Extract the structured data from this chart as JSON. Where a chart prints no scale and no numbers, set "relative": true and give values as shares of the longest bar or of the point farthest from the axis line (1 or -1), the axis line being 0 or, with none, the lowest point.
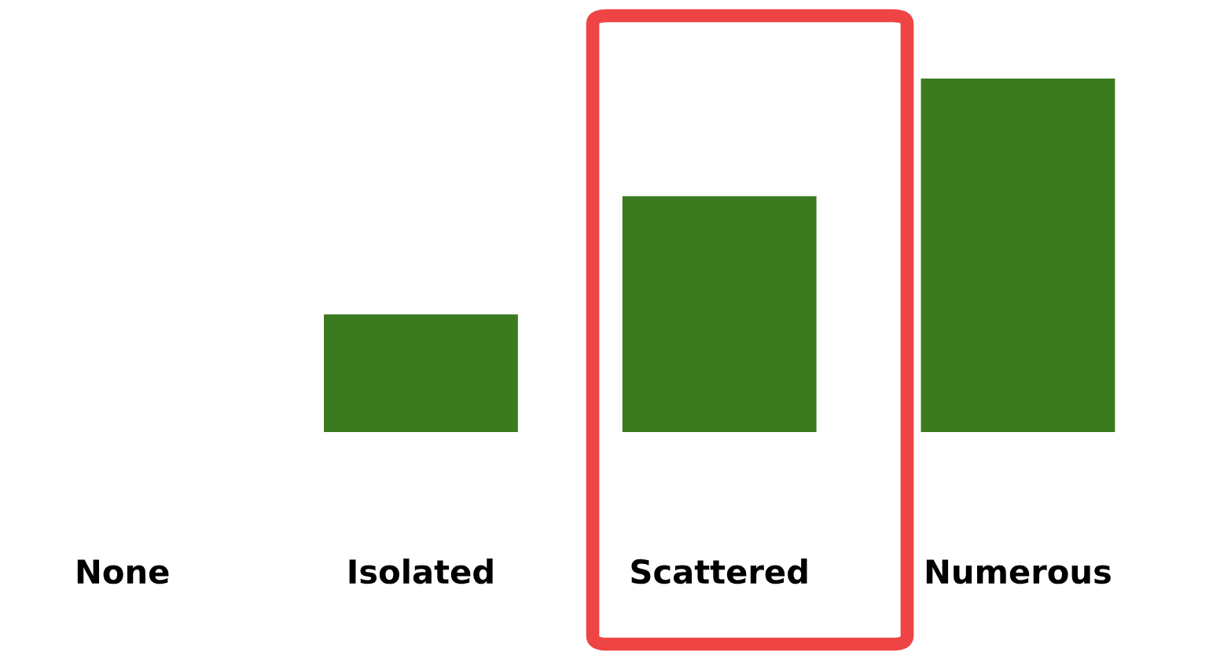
{
  "chart_data": {
    "type": "bar",
    "relative": true,
    "categories": [
      "None",
      "Isolated",
      "Scattered",
      "Numerous"
    ],
    "values": [
      0,
      0.333,
      0.667,
      1
    ],
    "color": "#3b7a1f"
  }
}
